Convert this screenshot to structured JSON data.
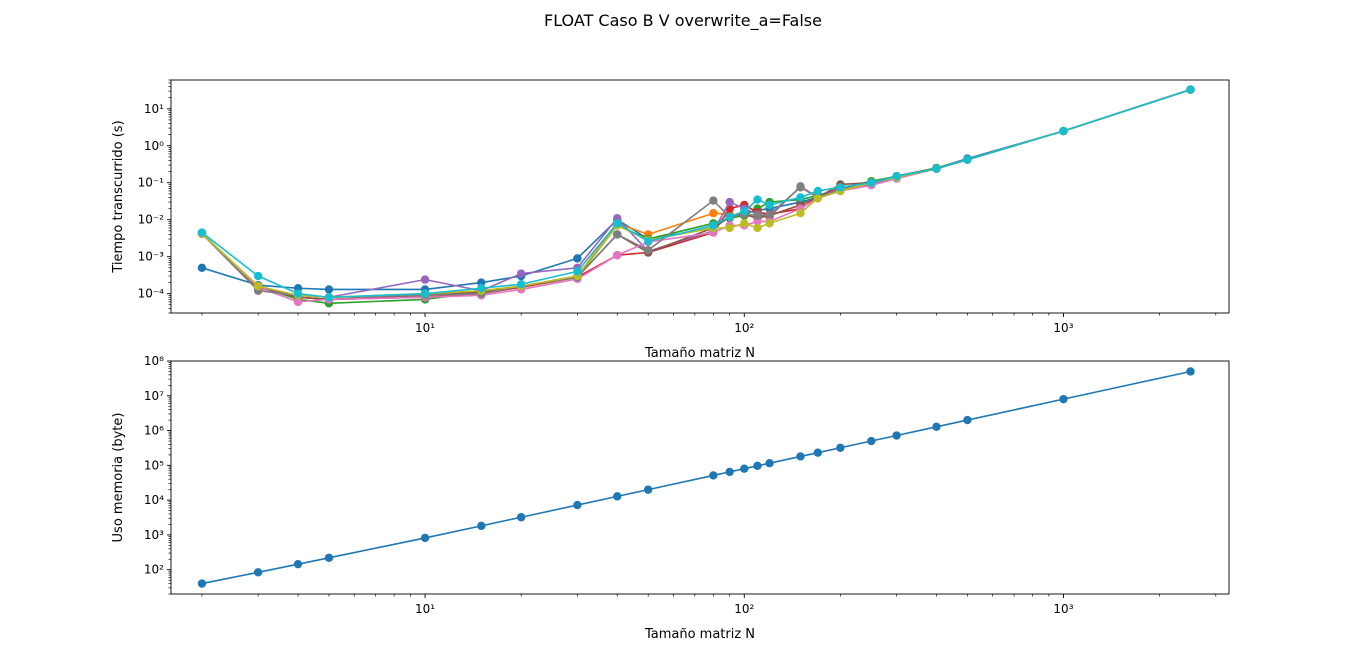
{
  "figure": {
    "title": "FLOAT Caso B V overwrite_a=False"
  },
  "colors": [
    "#1f77b4",
    "#ff7f0e",
    "#2ca02c",
    "#d62728",
    "#9467bd",
    "#8c564b",
    "#e377c2",
    "#7f7f7f",
    "#bcbd22",
    "#17becf"
  ],
  "chart_data": [
    {
      "type": "line",
      "scale": {
        "x": "log",
        "y": "log"
      },
      "xlabel": "Tamaño matriz N",
      "ylabel": "Tiempo transcurrido (s)",
      "xlim": [
        1.6,
        3300
      ],
      "ylim": [
        3e-05,
        60
      ],
      "xticks": [
        10,
        100,
        1000
      ],
      "xtick_labels": [
        "10¹",
        "10²",
        "10³"
      ],
      "yticks": [
        0.0001,
        0.001,
        0.01,
        0.1,
        1,
        10
      ],
      "ytick_labels": [
        "10⁻⁴",
        "10⁻³",
        "10⁻²",
        "10⁻¹",
        "10⁰",
        "10¹"
      ],
      "x": [
        2,
        3,
        4,
        5,
        10,
        15,
        20,
        30,
        40,
        50,
        80,
        90,
        100,
        110,
        120,
        150,
        170,
        200,
        250,
        300,
        400,
        500,
        1000,
        2500
      ],
      "series": [
        {
          "values": [
            0.0005,
            0.00017,
            0.00014,
            0.00013,
            0.00013,
            0.0002,
            0.0003,
            0.0009,
            0.01,
            0.003,
            0.006,
            0.012,
            0.015,
            0.018,
            0.02,
            0.03,
            0.04,
            0.06,
            0.1,
            0.15,
            0.25,
            0.45,
            2.5,
            33
          ]
        },
        {
          "values": [
            0.0042,
            0.00016,
            8e-05,
            7e-05,
            9e-05,
            0.00012,
            0.00016,
            0.0003,
            0.008,
            0.004,
            0.015,
            0.014,
            0.013,
            0.012,
            0.013,
            0.025,
            0.04,
            0.065,
            0.1,
            0.15,
            0.25,
            0.42,
            2.5,
            33
          ]
        },
        {
          "values": [
            0.0042,
            0.00016,
            7e-05,
            5.5e-05,
            7e-05,
            0.00011,
            0.00015,
            0.00028,
            0.007,
            0.003,
            0.008,
            0.011,
            0.013,
            0.02,
            0.03,
            0.035,
            0.045,
            0.07,
            0.11,
            0.15,
            0.25,
            0.42,
            2.5,
            33
          ]
        },
        {
          "values": [
            0.0042,
            0.00015,
            8e-05,
            7e-05,
            8e-05,
            0.0001,
            0.00015,
            0.00028,
            0.0011,
            0.0013,
            0.0045,
            0.02,
            0.025,
            0.016,
            0.014,
            0.02,
            0.04,
            0.075,
            0.1,
            0.14,
            0.24,
            0.42,
            2.5,
            33
          ]
        },
        {
          "values": [
            0.0042,
            0.00015,
            9e-05,
            8e-05,
            0.00024,
            0.00012,
            0.00035,
            0.0005,
            0.011,
            0.0014,
            0.005,
            0.03,
            0.02,
            0.014,
            0.012,
            0.08,
            0.04,
            0.07,
            0.09,
            0.13,
            0.24,
            0.42,
            2.5,
            33
          ]
        },
        {
          "values": [
            0.0042,
            0.00014,
            8e-05,
            7e-05,
            9e-05,
            0.00011,
            0.00016,
            0.00028,
            0.004,
            0.0013,
            0.006,
            0.012,
            0.014,
            0.011,
            0.013,
            0.025,
            0.04,
            0.09,
            0.1,
            0.15,
            0.24,
            0.42,
            2.5,
            33
          ]
        },
        {
          "values": [
            0.0042,
            0.00015,
            6e-05,
            7e-05,
            8e-05,
            9e-05,
            0.00013,
            0.00025,
            0.0011,
            0.0025,
            0.0045,
            0.007,
            0.007,
            0.009,
            0.009,
            0.02,
            0.038,
            0.06,
            0.085,
            0.13,
            0.24,
            0.42,
            2.5,
            33
          ]
        },
        {
          "values": [
            0.0042,
            0.00012,
            9e-05,
            8e-05,
            9e-05,
            0.0001,
            0.00016,
            0.00028,
            0.004,
            0.0015,
            0.033,
            0.012,
            0.014,
            0.013,
            0.014,
            0.075,
            0.04,
            0.065,
            0.1,
            0.14,
            0.24,
            0.42,
            2.5,
            33
          ]
        },
        {
          "values": [
            0.0042,
            0.00016,
            9e-05,
            8e-05,
            0.0001,
            0.00012,
            0.00016,
            0.0003,
            0.007,
            0.0028,
            0.006,
            0.006,
            0.008,
            0.006,
            0.008,
            0.015,
            0.038,
            0.06,
            0.1,
            0.14,
            0.24,
            0.42,
            2.5,
            33
          ]
        },
        {
          "values": [
            0.0045,
            0.0003,
            0.0001,
            8e-05,
            0.0001,
            0.00014,
            0.00018,
            0.0004,
            0.008,
            0.0026,
            0.007,
            0.012,
            0.017,
            0.035,
            0.025,
            0.04,
            0.06,
            0.075,
            0.1,
            0.15,
            0.24,
            0.42,
            2.5,
            33
          ]
        }
      ]
    },
    {
      "type": "line",
      "scale": {
        "x": "log",
        "y": "log"
      },
      "xlabel": "Tamaño matriz N",
      "ylabel": "Uso memoria (byte)",
      "xlim": [
        1.6,
        3300
      ],
      "ylim": [
        20,
        100000000
      ],
      "xticks": [
        10,
        100,
        1000
      ],
      "xtick_labels": [
        "10¹",
        "10²",
        "10³"
      ],
      "yticks": [
        100,
        1000,
        10000,
        100000,
        1000000,
        10000000,
        100000000
      ],
      "ytick_labels": [
        "10²",
        "10³",
        "10⁴",
        "10⁵",
        "10⁶",
        "10⁷",
        "10⁸"
      ],
      "x": [
        2,
        3,
        4,
        5,
        10,
        15,
        20,
        30,
        40,
        50,
        80,
        90,
        100,
        110,
        120,
        150,
        170,
        200,
        250,
        300,
        400,
        500,
        1000,
        2500
      ],
      "series": [
        {
          "values": [
            40,
            84,
            144,
            220,
            820,
            1820,
            3220,
            7220,
            12820,
            20020,
            51220,
            64820,
            80020,
            96820,
            115220,
            180020,
            231220,
            320020,
            500020,
            720020,
            1280020,
            2000020,
            8000020,
            50000020
          ]
        }
      ]
    }
  ]
}
